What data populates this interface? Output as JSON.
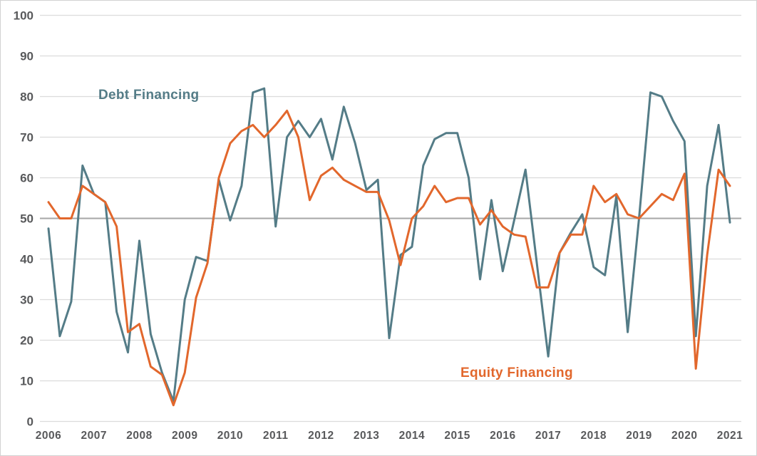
{
  "chart_data": {
    "type": "line",
    "title": "",
    "x_start_year": 2006,
    "x_end_year": 2021,
    "points_per_year": 4,
    "x_tick_labels": [
      "2006",
      "2007",
      "2008",
      "2009",
      "2010",
      "2011",
      "2012",
      "2013",
      "2014",
      "2015",
      "2016",
      "2017",
      "2018",
      "2019",
      "2020",
      "2021"
    ],
    "y_ticks": [
      0,
      10,
      20,
      30,
      40,
      50,
      60,
      70,
      80,
      90,
      100
    ],
    "ylim": [
      0,
      100
    ],
    "grid": "horizontal",
    "reference_line": 50,
    "legend_position": "inline-annotations",
    "series": [
      {
        "name": "Debt Financing",
        "color": "#547c87",
        "values": [
          47.5,
          21,
          29.5,
          63,
          56,
          54,
          27,
          17,
          44.5,
          21.5,
          12,
          5,
          30,
          40.5,
          39.5,
          59.5,
          49.5,
          58,
          81,
          82,
          48,
          70,
          74,
          70,
          74.5,
          64.5,
          77.5,
          68.5,
          57,
          59.5,
          20.5,
          41,
          43,
          63,
          69.5,
          71,
          71,
          60,
          35,
          54.5,
          37,
          49.5,
          62,
          39,
          16,
          41.5,
          46.5,
          51,
          38,
          36,
          55.5,
          22,
          50,
          81,
          80,
          74,
          69,
          21,
          58,
          73,
          49
        ]
      },
      {
        "name": "Equity Financing",
        "color": "#e2672c",
        "values": [
          54,
          50,
          50,
          58,
          56,
          54,
          48,
          22,
          24,
          13.5,
          11.5,
          4,
          12,
          30.5,
          39,
          60,
          68.5,
          71.5,
          73,
          70,
          73,
          76.5,
          70,
          54.5,
          60.5,
          62.5,
          59.5,
          58,
          56.5,
          56.5,
          49.5,
          38.5,
          50,
          53,
          58,
          54,
          55,
          55,
          48.5,
          52,
          48,
          46,
          45.5,
          33,
          33,
          41.5,
          46,
          46,
          58,
          54,
          56,
          51,
          50,
          53,
          56,
          54.5,
          61,
          13,
          41,
          62,
          58
        ]
      }
    ]
  },
  "colors": {
    "background": "#ffffff",
    "border": "#d2d2d2",
    "gridline": "#dcdcdc",
    "reference_line": "#a6a6a6",
    "tick_text": "#58595b"
  }
}
